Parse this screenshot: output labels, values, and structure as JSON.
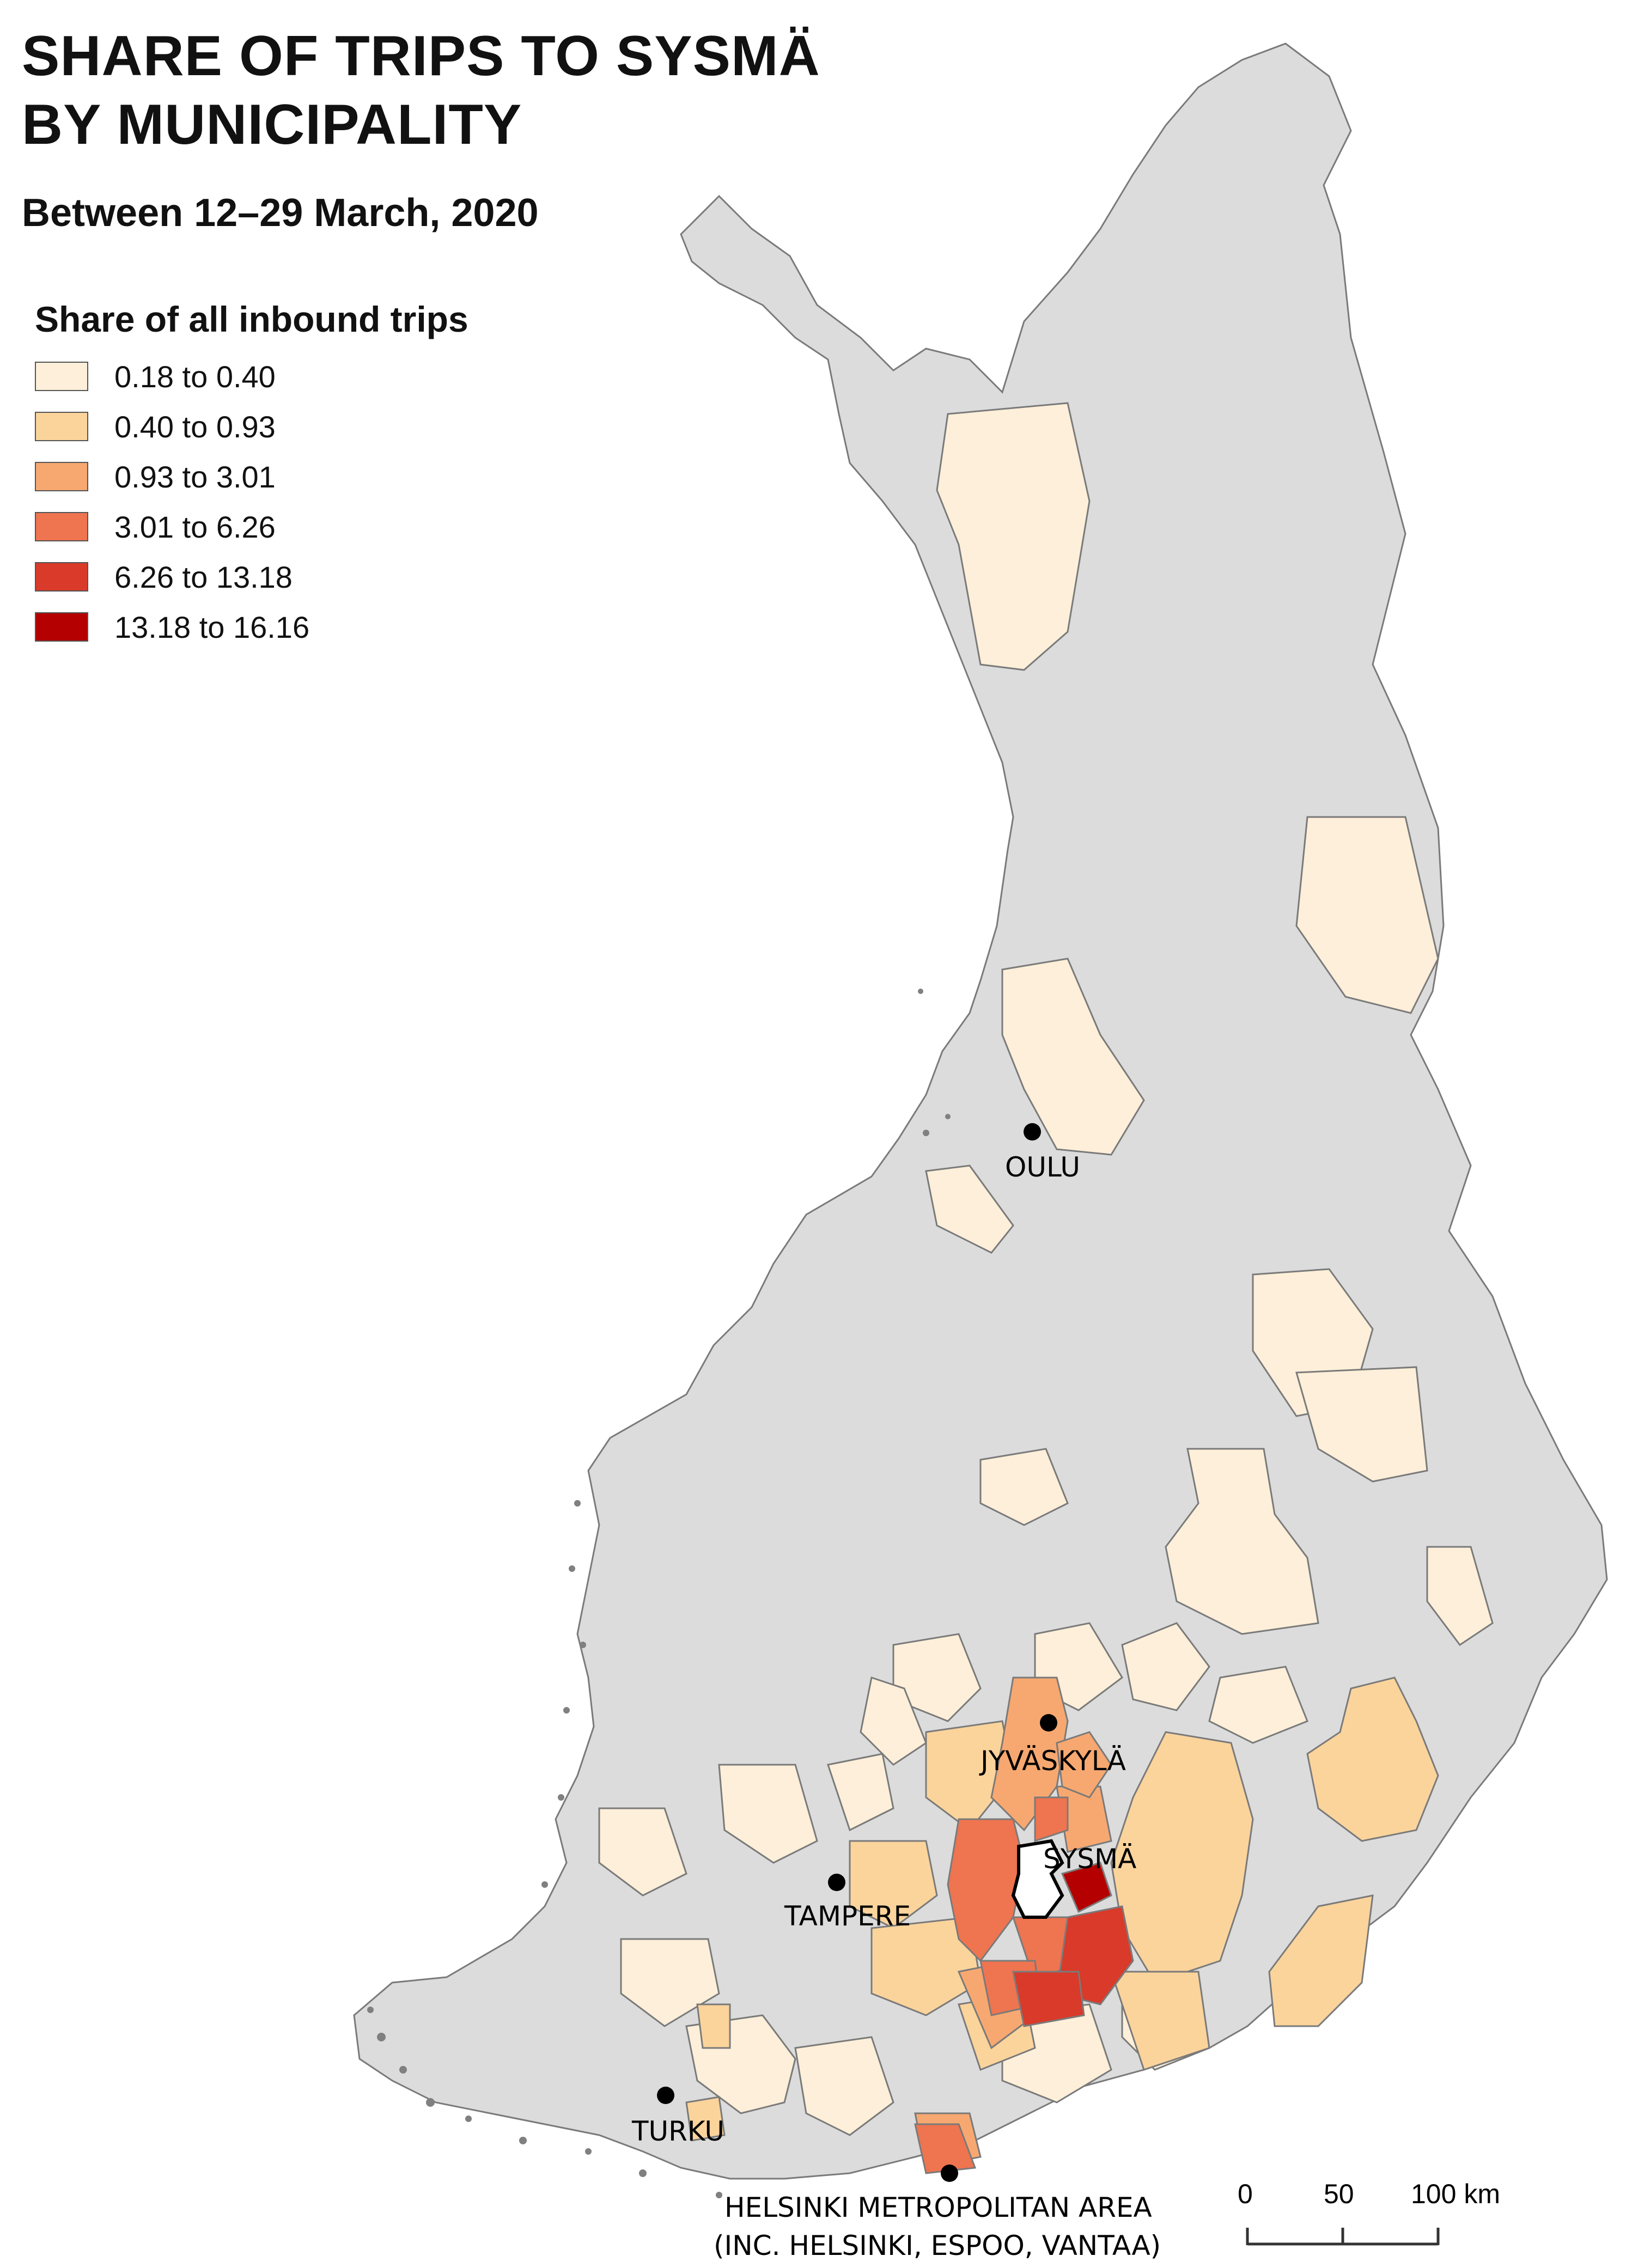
{
  "title_line1": "SHARE OF TRIPS TO SYSMÄ",
  "title_line2": "BY MUNICIPALITY",
  "subtitle": "Between 12–29 March, 2020",
  "legend": {
    "title": "Share of all inbound trips",
    "classes": [
      {
        "label": "0.18 to 0.40",
        "color": "#fdefd9"
      },
      {
        "label": "0.40 to 0.93",
        "color": "#fbd49c"
      },
      {
        "label": "0.93 to 3.01",
        "color": "#f7a870"
      },
      {
        "label": "3.01 to 6.26",
        "color": "#ef7450"
      },
      {
        "label": "6.26 to 13.18",
        "color": "#d93a2a"
      },
      {
        "label": "13.18 to 16.16",
        "color": "#b40000"
      }
    ]
  },
  "colors": {
    "no_data": "#dcdcdc",
    "border": "#7a7a7a",
    "sysma_fill": "#ffffff",
    "city_dot": "#000000"
  },
  "cities": {
    "oulu": "OULU",
    "jyvaskyla": "JYVÄSKYLÄ",
    "sysma": "SYSMÄ",
    "tampere": "TAMPERE",
    "turku": "TURKU",
    "helsinki_line1": "HELSINKI METROPOLITAN AREA",
    "helsinki_line2": "(INC. HELSINKI, ESPOO, VANTAA)"
  },
  "scalebar": {
    "labels": [
      "0",
      "50",
      "100 km"
    ]
  }
}
